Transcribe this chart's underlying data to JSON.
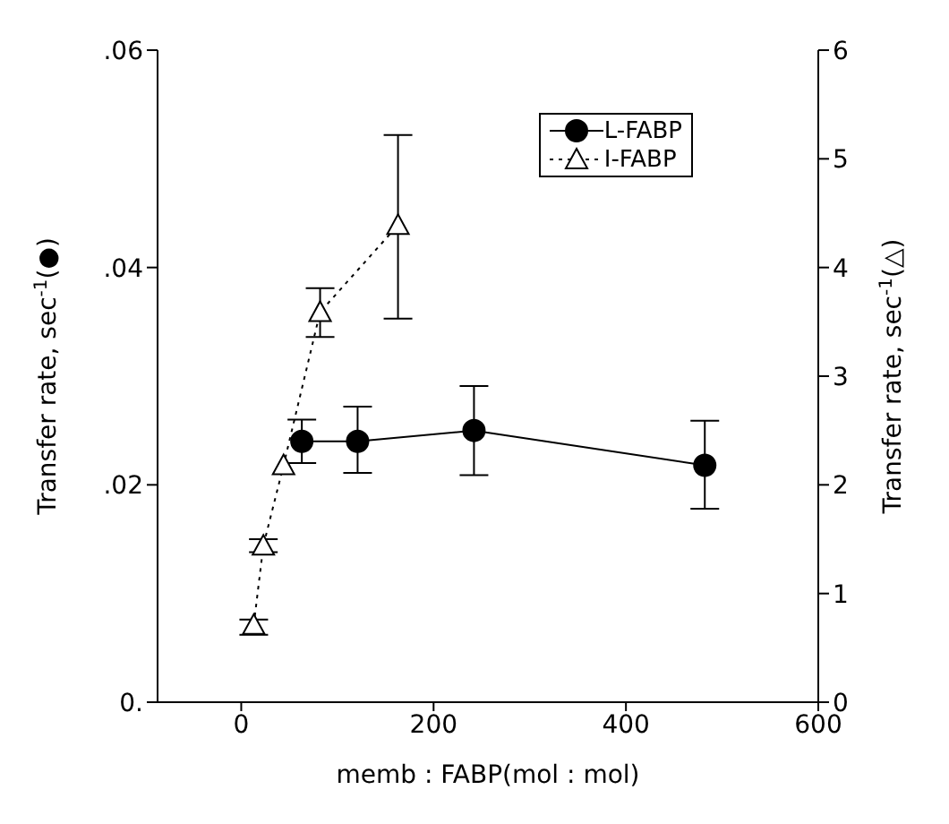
{
  "chart_data": {
    "type": "line",
    "xlabel": "memb : FABP(mol : mol)",
    "ylabel": "Transfer rate, sec$^{-1}$(●)",
    "y2label": "Transfer rate, sec$^{-1}$(△)",
    "xlim": [
      -87,
      600
    ],
    "xticks": [
      0,
      200,
      400,
      600
    ],
    "ylim": [
      0,
      0.06
    ],
    "yticks": [
      {
        "value": 0,
        "label": "0."
      },
      {
        "value": 0.02,
        "label": ".02"
      },
      {
        "value": 0.04,
        "label": ".04"
      },
      {
        "value": 0.06,
        "label": ".06"
      }
    ],
    "y2lim": [
      0,
      6
    ],
    "y2ticks": [
      0,
      1,
      2,
      3,
      4,
      5,
      6
    ],
    "grid": false,
    "legend": "top right",
    "series": [
      {
        "name": "L-FABP",
        "color": "#000000",
        "marker": "circle",
        "line_style": "solid",
        "x": [
          63,
          121,
          242,
          482
        ],
        "values": [
          0.024,
          0.024,
          0.025,
          0.0218
        ],
        "errors": [
          [
            0.022,
            0.026
          ],
          [
            0.0211,
            0.0272
          ],
          [
            0.0209,
            0.0291
          ],
          [
            0.0178,
            0.0259
          ]
        ]
      },
      {
        "name": "I-FABP",
        "color": "#000000",
        "marker": "triangle",
        "line_style": "dotted",
        "axis": "y2",
        "x": [
          13,
          23,
          44,
          82,
          163
        ],
        "values": [
          0.71,
          1.44,
          2.18,
          3.59,
          4.39
        ],
        "errors": [
          [
            0.62,
            0.76
          ],
          [
            1.38,
            1.5
          ],
          null,
          [
            3.36,
            3.81
          ],
          [
            3.53,
            5.22
          ]
        ]
      }
    ]
  }
}
